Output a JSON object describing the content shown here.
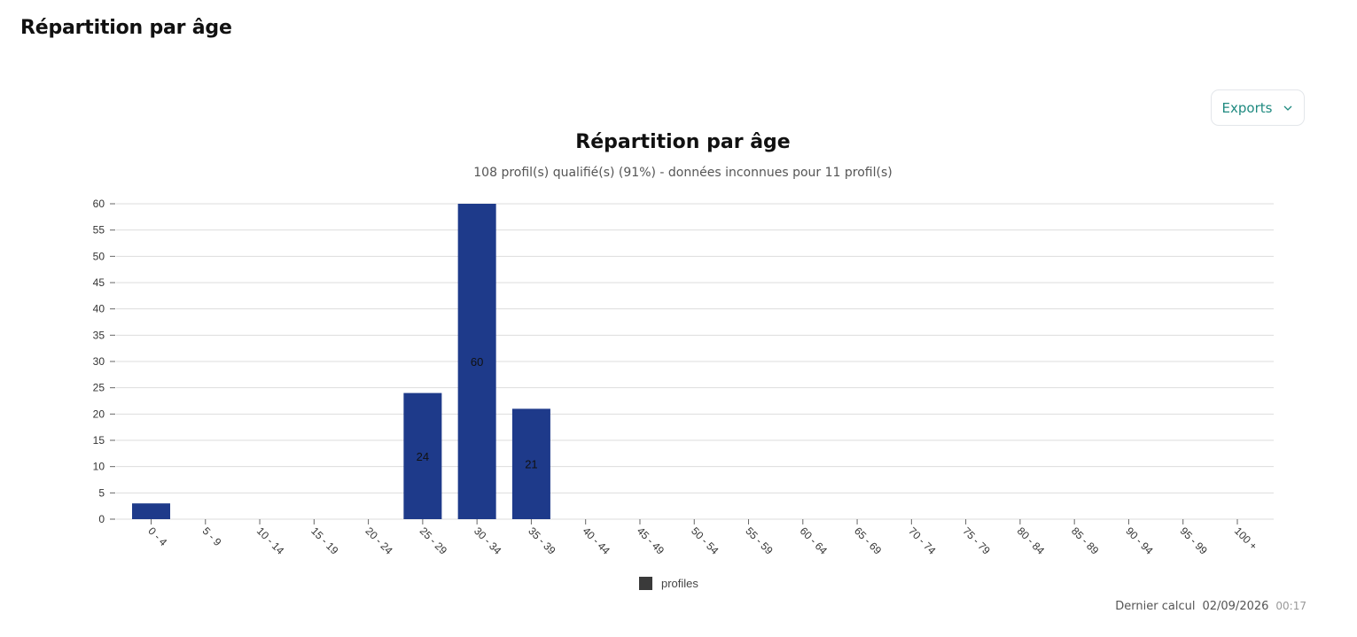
{
  "page": {
    "title": "Répartition par âge"
  },
  "toolbar": {
    "exports_label": "Exports"
  },
  "footer": {
    "label": "Dernier calcul",
    "date": "02/09/2026",
    "time": "00:17"
  },
  "colors": {
    "bar": "#1e3a8a",
    "grid": "#dddddd",
    "accent": "#1f8a80",
    "legend_swatch": "#3a3a3a"
  },
  "chart_data": {
    "type": "bar",
    "title": "Répartition par âge",
    "subtitle": "108 profil(s) qualifié(s) (91%) - données inconnues pour 11 profil(s)",
    "xlabel": "",
    "ylabel": "",
    "ylim": [
      0,
      60
    ],
    "yticks": [
      0,
      5,
      10,
      15,
      20,
      25,
      30,
      35,
      40,
      45,
      50,
      55,
      60
    ],
    "grid": true,
    "legend_position": "bottom-center",
    "categories": [
      "0 - 4",
      "5 - 9",
      "10 - 14",
      "15 - 19",
      "20 - 24",
      "25 - 29",
      "30 - 34",
      "35 - 39",
      "40 - 44",
      "45 - 49",
      "50 - 54",
      "55 - 59",
      "60 - 64",
      "65 - 69",
      "70 - 74",
      "75 - 79",
      "80 - 84",
      "85 - 89",
      "90 - 94",
      "95 - 99",
      "100 +"
    ],
    "series": [
      {
        "name": "profiles",
        "values": [
          3,
          0,
          0,
          0,
          0,
          24,
          60,
          21,
          0,
          0,
          0,
          0,
          0,
          0,
          0,
          0,
          0,
          0,
          0,
          0,
          0
        ],
        "data_labels": [
          "",
          "",
          "",
          "",
          "",
          "24",
          "60",
          "21",
          "",
          "",
          "",
          "",
          "",
          "",
          "",
          "",
          "",
          "",
          "",
          "",
          ""
        ]
      }
    ]
  }
}
